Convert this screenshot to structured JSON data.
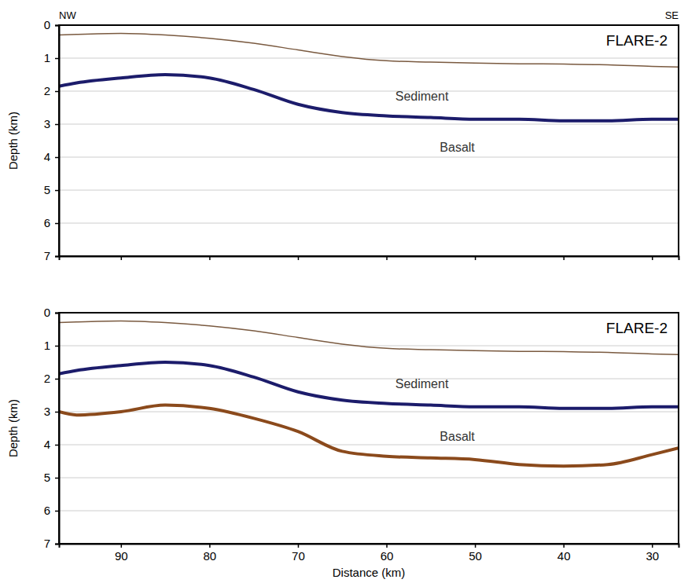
{
  "chart_data": [
    {
      "type": "line",
      "title": "FLARE-2",
      "direction_labels": {
        "left": "NW",
        "right": "SE"
      },
      "ylabel": "Depth (km)",
      "xlim": [
        97,
        27
      ],
      "xticks": [
        90,
        80,
        70,
        60,
        50,
        40,
        30
      ],
      "ylim": [
        0,
        7
      ],
      "yticks": [
        0,
        1,
        2,
        3,
        4,
        5,
        6,
        7
      ],
      "grid": true,
      "tick_labels": "y",
      "x": [
        97,
        95,
        90,
        85,
        80,
        75,
        70,
        65,
        60,
        55,
        50,
        45,
        40,
        35,
        30,
        27
      ],
      "series": [
        {
          "color": "#7a5a40",
          "line_style": "solid",
          "values": [
            0.3,
            0.28,
            0.25,
            0.3,
            0.4,
            0.55,
            0.75,
            0.95,
            1.08,
            1.12,
            1.15,
            1.17,
            1.18,
            1.2,
            1.25,
            1.27
          ]
        },
        {
          "color": "#1c1c6b",
          "line_style": "solid",
          "values": [
            1.85,
            1.75,
            1.6,
            1.5,
            1.6,
            1.95,
            2.4,
            2.65,
            2.75,
            2.8,
            2.85,
            2.85,
            2.9,
            2.9,
            2.85,
            2.85
          ]
        }
      ],
      "annotations": [
        {
          "text": "Sediment",
          "x": 56,
          "y": 2.15
        },
        {
          "text": "Basalt",
          "x": 52,
          "y": 3.7
        }
      ]
    },
    {
      "type": "line",
      "title": "FLARE-2",
      "xlabel": "Distance (km)",
      "ylabel": "Depth (km)",
      "xlim": [
        97,
        27
      ],
      "xticks": [
        90,
        80,
        70,
        60,
        50,
        40,
        30
      ],
      "ylim": [
        0,
        7
      ],
      "yticks": [
        0,
        1,
        2,
        3,
        4,
        5,
        6,
        7
      ],
      "grid": true,
      "x": [
        97,
        95,
        90,
        85,
        80,
        75,
        70,
        65,
        60,
        55,
        50,
        45,
        40,
        35,
        30,
        27
      ],
      "series": [
        {
          "color": "#7a5a40",
          "line_style": "solid",
          "values": [
            0.3,
            0.28,
            0.25,
            0.3,
            0.4,
            0.55,
            0.75,
            0.95,
            1.08,
            1.12,
            1.15,
            1.17,
            1.18,
            1.2,
            1.25,
            1.27
          ]
        },
        {
          "color": "#1c1c6b",
          "line_style": "solid",
          "values": [
            1.85,
            1.75,
            1.6,
            1.5,
            1.6,
            1.95,
            2.4,
            2.65,
            2.75,
            2.8,
            2.85,
            2.85,
            2.9,
            2.9,
            2.85,
            2.85
          ]
        },
        {
          "color": "#8b4a1c",
          "line_style": "solid",
          "values": [
            3.0,
            3.1,
            3.0,
            2.8,
            2.9,
            3.2,
            3.6,
            4.2,
            4.35,
            4.4,
            4.45,
            4.6,
            4.65,
            4.6,
            4.3,
            4.1
          ]
        }
      ],
      "annotations": [
        {
          "text": "Sediment",
          "x": 56,
          "y": 2.15
        },
        {
          "text": "Basalt",
          "x": 52,
          "y": 3.75
        }
      ]
    }
  ]
}
